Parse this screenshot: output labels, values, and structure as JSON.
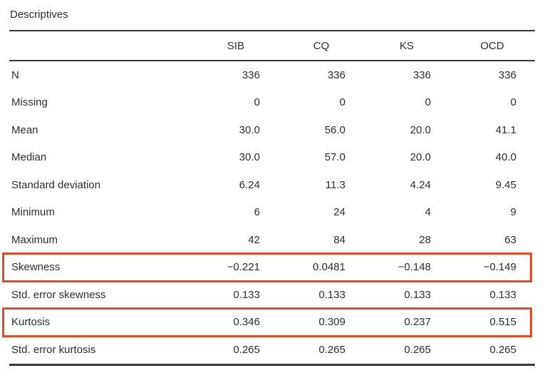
{
  "title": "Descriptives",
  "table": {
    "columns": [
      "SIB",
      "CQ",
      "KS",
      "OCD"
    ],
    "rows": [
      {
        "label": "N",
        "values": [
          "336",
          "336",
          "336",
          "336"
        ],
        "highlight": false
      },
      {
        "label": "Missing",
        "values": [
          "0",
          "0",
          "0",
          "0"
        ],
        "highlight": false
      },
      {
        "label": "Mean",
        "values": [
          "30.0",
          "56.0",
          "20.0",
          "41.1"
        ],
        "highlight": false
      },
      {
        "label": "Median",
        "values": [
          "30.0",
          "57.0",
          "20.0",
          "40.0"
        ],
        "highlight": false
      },
      {
        "label": "Standard deviation",
        "values": [
          "6.24",
          "11.3",
          "4.24",
          "9.45"
        ],
        "highlight": false
      },
      {
        "label": "Minimum",
        "values": [
          "6",
          "24",
          "4",
          "9"
        ],
        "highlight": false
      },
      {
        "label": "Maximum",
        "values": [
          "42",
          "84",
          "28",
          "63"
        ],
        "highlight": false
      },
      {
        "label": "Skewness",
        "values": [
          "−0.221",
          "0.0481",
          "−0.148",
          "−0.149"
        ],
        "highlight": true
      },
      {
        "label": "Std. error skewness",
        "values": [
          "0.133",
          "0.133",
          "0.133",
          "0.133"
        ],
        "highlight": false
      },
      {
        "label": "Kurtosis",
        "values": [
          "0.346",
          "0.309",
          "0.237",
          "0.515"
        ],
        "highlight": true
      },
      {
        "label": "Std. error kurtosis",
        "values": [
          "0.265",
          "0.265",
          "0.265",
          "0.265"
        ],
        "highlight": false
      }
    ]
  },
  "colors": {
    "highlight_border": "#e8492c",
    "rule": "#383838",
    "text": "#2d2d2d"
  }
}
